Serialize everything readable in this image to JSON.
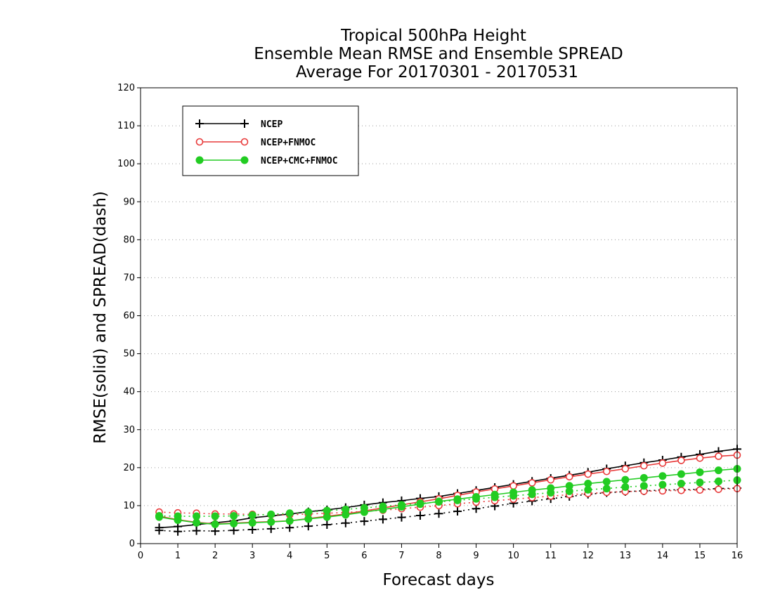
{
  "chart_data": {
    "type": "line",
    "title": [
      "Tropical 500hPa Height",
      "Ensemble Mean RMSE and Ensemble SPREAD",
      "Average For 20170301 - 20170531"
    ],
    "xlabel": "Forecast days",
    "ylabel": "RMSE(solid) and SPREAD(dash)",
    "xlim": [
      0,
      16
    ],
    "ylim": [
      0,
      120
    ],
    "xticks": [
      0,
      1,
      2,
      3,
      4,
      5,
      6,
      7,
      8,
      9,
      10,
      11,
      12,
      13,
      14,
      15,
      16
    ],
    "yticks": [
      0,
      10,
      20,
      30,
      40,
      50,
      60,
      70,
      80,
      90,
      100,
      110,
      120
    ],
    "grid": "horizontal dotted",
    "legend_position": "top-left",
    "x": [
      0.5,
      1,
      1.5,
      2,
      2.5,
      3,
      3.5,
      4,
      4.5,
      5,
      5.5,
      6,
      6.5,
      7,
      7.5,
      8,
      8.5,
      9,
      9.5,
      10,
      10.5,
      11,
      11.5,
      12,
      12.5,
      13,
      13.5,
      14,
      14.5,
      15,
      15.5,
      16
    ],
    "series": [
      {
        "name": "NCEP",
        "color": "#000000",
        "marker": "plus",
        "rmse": [
          4.2,
          4.5,
          5.0,
          5.5,
          6.0,
          6.8,
          7.3,
          7.8,
          8.4,
          8.9,
          9.5,
          10.2,
          10.8,
          11.3,
          11.9,
          12.4,
          13.2,
          14.0,
          14.8,
          15.6,
          16.4,
          17.2,
          18.0,
          18.8,
          19.7,
          20.5,
          21.3,
          22.0,
          22.8,
          23.5,
          24.3,
          24.9
        ],
        "spread": [
          3.5,
          3.2,
          3.4,
          3.3,
          3.5,
          3.7,
          3.9,
          4.2,
          4.6,
          5.0,
          5.4,
          5.9,
          6.4,
          6.9,
          7.4,
          7.9,
          8.5,
          9.2,
          9.9,
          10.6,
          11.2,
          11.8,
          12.4,
          13.0,
          13.4,
          13.7,
          13.9,
          14.1,
          14.2,
          14.3,
          14.5,
          14.6
        ]
      },
      {
        "name": "NCEP+FNMOC",
        "color": "#e83a3a",
        "marker": "open-circle",
        "rmse": [
          7.2,
          6.3,
          5.6,
          5.2,
          5.4,
          5.6,
          5.8,
          6.0,
          6.6,
          7.2,
          7.8,
          8.6,
          9.4,
          10.2,
          11.0,
          11.8,
          12.7,
          13.6,
          14.4,
          15.2,
          16.0,
          16.8,
          17.6,
          18.3,
          19.0,
          19.7,
          20.5,
          21.2,
          21.9,
          22.5,
          23.0,
          23.3
        ],
        "spread": [
          8.3,
          8.1,
          8.0,
          7.8,
          7.8,
          7.7,
          7.6,
          7.6,
          7.8,
          8.0,
          8.2,
          8.5,
          8.8,
          9.2,
          9.6,
          10.0,
          10.5,
          10.9,
          11.3,
          11.7,
          12.1,
          12.5,
          12.9,
          13.2,
          13.5,
          13.7,
          13.8,
          13.9,
          14.0,
          14.1,
          14.3,
          14.5
        ]
      },
      {
        "name": "NCEP+CMC+FNMOC",
        "color": "#22cc22",
        "marker": "filled-circle",
        "rmse": [
          7.0,
          6.2,
          5.5,
          5.1,
          5.3,
          5.5,
          5.7,
          6.0,
          6.5,
          7.0,
          7.6,
          8.3,
          9.0,
          9.7,
          10.4,
          11.1,
          11.7,
          12.3,
          12.9,
          13.5,
          14.1,
          14.6,
          15.2,
          15.8,
          16.3,
          16.8,
          17.3,
          17.8,
          18.3,
          18.8,
          19.3,
          19.7
        ],
        "spread": [
          7.3,
          7.2,
          7.2,
          7.2,
          7.3,
          7.5,
          7.7,
          8.0,
          8.3,
          8.7,
          9.0,
          9.4,
          9.8,
          10.2,
          10.6,
          11.0,
          11.4,
          11.8,
          12.2,
          12.6,
          13.0,
          13.4,
          13.8,
          14.2,
          14.5,
          14.9,
          15.2,
          15.5,
          15.8,
          16.1,
          16.4,
          16.7
        ]
      }
    ]
  }
}
